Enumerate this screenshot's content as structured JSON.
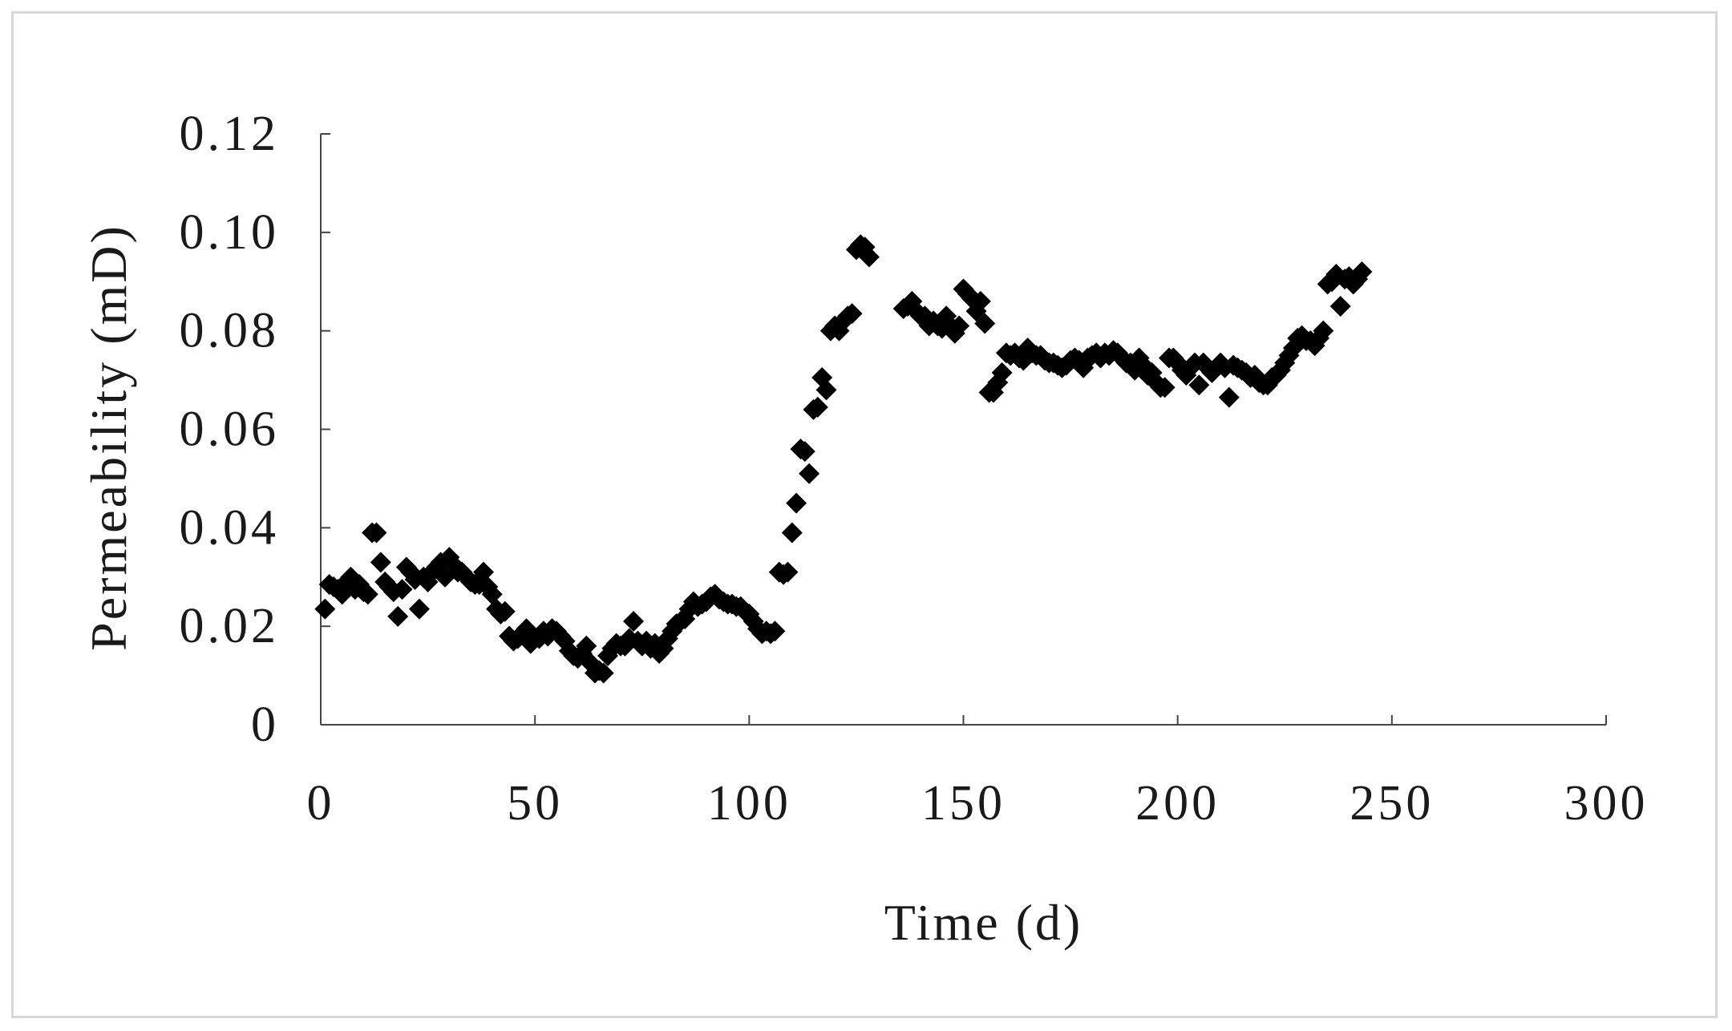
{
  "chart_data": {
    "type": "scatter",
    "title": "",
    "xlabel": "Time (d)",
    "ylabel": "Permeability (mD)",
    "xlim": [
      0,
      300
    ],
    "ylim": [
      0,
      0.12
    ],
    "xticks": [
      0,
      50,
      100,
      150,
      200,
      250,
      300
    ],
    "xtick_labels": [
      "0",
      "50",
      "100",
      "150",
      "200",
      "250",
      "300"
    ],
    "yticks": [
      0,
      0.02,
      0.04,
      0.06,
      0.08,
      0.1,
      0.12
    ],
    "ytick_labels": [
      "0",
      "0.02",
      "0.04",
      "0.06",
      "0.08",
      "0.10",
      "0.12"
    ],
    "grid": false,
    "marker": "diamond",
    "marker_color": "#000000",
    "points": [
      [
        1,
        0.0235
      ],
      [
        2,
        0.0285
      ],
      [
        3,
        0.028
      ],
      [
        4,
        0.0275
      ],
      [
        5,
        0.0265
      ],
      [
        6,
        0.029
      ],
      [
        7,
        0.03
      ],
      [
        8,
        0.0275
      ],
      [
        9,
        0.0285
      ],
      [
        10,
        0.027
      ],
      [
        11,
        0.0265
      ],
      [
        12,
        0.039
      ],
      [
        13,
        0.039
      ],
      [
        14,
        0.033
      ],
      [
        15,
        0.029
      ],
      [
        16,
        0.028
      ],
      [
        17,
        0.027
      ],
      [
        18,
        0.022
      ],
      [
        19,
        0.0275
      ],
      [
        20,
        0.032
      ],
      [
        21,
        0.031
      ],
      [
        22,
        0.0295
      ],
      [
        23,
        0.0235
      ],
      [
        24,
        0.03
      ],
      [
        25,
        0.029
      ],
      [
        26,
        0.031
      ],
      [
        27,
        0.032
      ],
      [
        28,
        0.033
      ],
      [
        29,
        0.03
      ],
      [
        30,
        0.034
      ],
      [
        31,
        0.0325
      ],
      [
        32,
        0.031
      ],
      [
        33,
        0.031
      ],
      [
        34,
        0.03
      ],
      [
        35,
        0.029
      ],
      [
        36,
        0.0285
      ],
      [
        37,
        0.0285
      ],
      [
        38,
        0.031
      ],
      [
        39,
        0.028
      ],
      [
        40,
        0.0265
      ],
      [
        41,
        0.0235
      ],
      [
        42,
        0.0225
      ],
      [
        43,
        0.023
      ],
      [
        44,
        0.018
      ],
      [
        45,
        0.017
      ],
      [
        46,
        0.0175
      ],
      [
        47,
        0.0185
      ],
      [
        48,
        0.0195
      ],
      [
        49,
        0.0165
      ],
      [
        50,
        0.0175
      ],
      [
        51,
        0.0175
      ],
      [
        52,
        0.019
      ],
      [
        53,
        0.018
      ],
      [
        54,
        0.0195
      ],
      [
        55,
        0.019
      ],
      [
        56,
        0.018
      ],
      [
        57,
        0.017
      ],
      [
        58,
        0.015
      ],
      [
        59,
        0.014
      ],
      [
        60,
        0.0135
      ],
      [
        61,
        0.0145
      ],
      [
        62,
        0.016
      ],
      [
        63,
        0.0125
      ],
      [
        64,
        0.0105
      ],
      [
        65,
        0.011
      ],
      [
        66,
        0.0105
      ],
      [
        67,
        0.014
      ],
      [
        68,
        0.0155
      ],
      [
        69,
        0.0165
      ],
      [
        70,
        0.016
      ],
      [
        71,
        0.016
      ],
      [
        72,
        0.0175
      ],
      [
        73,
        0.021
      ],
      [
        74,
        0.017
      ],
      [
        75,
        0.016
      ],
      [
        76,
        0.017
      ],
      [
        77,
        0.0155
      ],
      [
        78,
        0.0165
      ],
      [
        79,
        0.0145
      ],
      [
        80,
        0.0155
      ],
      [
        81,
        0.0175
      ],
      [
        82,
        0.019
      ],
      [
        83,
        0.0205
      ],
      [
        84,
        0.021
      ],
      [
        85,
        0.0215
      ],
      [
        86,
        0.0235
      ],
      [
        87,
        0.025
      ],
      [
        88,
        0.024
      ],
      [
        89,
        0.0245
      ],
      [
        90,
        0.025
      ],
      [
        91,
        0.026
      ],
      [
        92,
        0.0265
      ],
      [
        93,
        0.0255
      ],
      [
        94,
        0.025
      ],
      [
        95,
        0.0245
      ],
      [
        96,
        0.0245
      ],
      [
        97,
        0.024
      ],
      [
        98,
        0.024
      ],
      [
        99,
        0.023
      ],
      [
        100,
        0.0225
      ],
      [
        101,
        0.021
      ],
      [
        102,
        0.0195
      ],
      [
        103,
        0.0185
      ],
      [
        104,
        0.019
      ],
      [
        105,
        0.0185
      ],
      [
        106,
        0.019
      ],
      [
        107,
        0.031
      ],
      [
        108,
        0.0305
      ],
      [
        109,
        0.031
      ],
      [
        110,
        0.039
      ],
      [
        111,
        0.045
      ],
      [
        112,
        0.056
      ],
      [
        113,
        0.0555
      ],
      [
        114,
        0.051
      ],
      [
        115,
        0.064
      ],
      [
        116,
        0.0645
      ],
      [
        117,
        0.0705
      ],
      [
        118,
        0.068
      ],
      [
        119,
        0.08
      ],
      [
        120,
        0.081
      ],
      [
        121,
        0.08
      ],
      [
        122,
        0.082
      ],
      [
        123,
        0.083
      ],
      [
        124,
        0.0835
      ],
      [
        125,
        0.0965
      ],
      [
        126,
        0.0975
      ],
      [
        127,
        0.097
      ],
      [
        128,
        0.095
      ],
      [
        136,
        0.0845
      ],
      [
        137,
        0.085
      ],
      [
        138,
        0.086
      ],
      [
        139,
        0.084
      ],
      [
        140,
        0.083
      ],
      [
        141,
        0.083
      ],
      [
        142,
        0.081
      ],
      [
        143,
        0.082
      ],
      [
        144,
        0.081
      ],
      [
        145,
        0.0805
      ],
      [
        146,
        0.083
      ],
      [
        147,
        0.081
      ],
      [
        148,
        0.0795
      ],
      [
        149,
        0.081
      ],
      [
        150,
        0.0885
      ],
      [
        151,
        0.0875
      ],
      [
        152,
        0.0865
      ],
      [
        153,
        0.084
      ],
      [
        154,
        0.086
      ],
      [
        155,
        0.0815
      ],
      [
        156,
        0.0675
      ],
      [
        157,
        0.0675
      ],
      [
        158,
        0.0695
      ],
      [
        159,
        0.0715
      ],
      [
        160,
        0.0755
      ],
      [
        161,
        0.075
      ],
      [
        162,
        0.0755
      ],
      [
        163,
        0.0745
      ],
      [
        164,
        0.074
      ],
      [
        165,
        0.0765
      ],
      [
        166,
        0.0755
      ],
      [
        167,
        0.075
      ],
      [
        168,
        0.075
      ],
      [
        169,
        0.074
      ],
      [
        170,
        0.0735
      ],
      [
        171,
        0.0735
      ],
      [
        172,
        0.073
      ],
      [
        173,
        0.0725
      ],
      [
        174,
        0.073
      ],
      [
        175,
        0.074
      ],
      [
        176,
        0.0745
      ],
      [
        177,
        0.074
      ],
      [
        178,
        0.0725
      ],
      [
        179,
        0.0745
      ],
      [
        180,
        0.075
      ],
      [
        181,
        0.0755
      ],
      [
        182,
        0.0745
      ],
      [
        183,
        0.0755
      ],
      [
        184,
        0.075
      ],
      [
        185,
        0.076
      ],
      [
        186,
        0.0755
      ],
      [
        187,
        0.0745
      ],
      [
        188,
        0.0735
      ],
      [
        189,
        0.0735
      ],
      [
        190,
        0.072
      ],
      [
        191,
        0.0745
      ],
      [
        192,
        0.073
      ],
      [
        193,
        0.071
      ],
      [
        194,
        0.0715
      ],
      [
        195,
        0.0695
      ],
      [
        196,
        0.0685
      ],
      [
        197,
        0.0685
      ],
      [
        198,
        0.0745
      ],
      [
        199,
        0.0745
      ],
      [
        200,
        0.0735
      ],
      [
        201,
        0.072
      ],
      [
        202,
        0.071
      ],
      [
        203,
        0.0725
      ],
      [
        204,
        0.0735
      ],
      [
        205,
        0.069
      ],
      [
        206,
        0.0735
      ],
      [
        207,
        0.0725
      ],
      [
        208,
        0.0715
      ],
      [
        209,
        0.0725
      ],
      [
        210,
        0.0735
      ],
      [
        211,
        0.0725
      ],
      [
        212,
        0.0665
      ],
      [
        213,
        0.073
      ],
      [
        214,
        0.0725
      ],
      [
        215,
        0.072
      ],
      [
        216,
        0.0715
      ],
      [
        217,
        0.0705
      ],
      [
        218,
        0.071
      ],
      [
        219,
        0.0695
      ],
      [
        220,
        0.069
      ],
      [
        221,
        0.069
      ],
      [
        222,
        0.0705
      ],
      [
        223,
        0.071
      ],
      [
        224,
        0.072
      ],
      [
        225,
        0.0735
      ],
      [
        226,
        0.075
      ],
      [
        227,
        0.0765
      ],
      [
        228,
        0.0785
      ],
      [
        229,
        0.079
      ],
      [
        230,
        0.078
      ],
      [
        231,
        0.078
      ],
      [
        232,
        0.077
      ],
      [
        233,
        0.0785
      ],
      [
        234,
        0.08
      ],
      [
        235,
        0.0895
      ],
      [
        236,
        0.09
      ],
      [
        237,
        0.0915
      ],
      [
        238,
        0.085
      ],
      [
        239,
        0.0905
      ],
      [
        240,
        0.091
      ],
      [
        241,
        0.0895
      ],
      [
        242,
        0.0905
      ],
      [
        243,
        0.092
      ]
    ]
  }
}
